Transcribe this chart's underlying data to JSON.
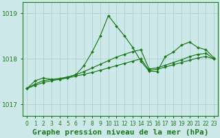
{
  "title": "Graphe pression niveau de la mer (hPa)",
  "background_color": "#cce8e8",
  "grid_color": "#aacccc",
  "line_color": "#1a7a1a",
  "x_values": [
    0,
    1,
    2,
    3,
    4,
    5,
    6,
    7,
    8,
    9,
    10,
    11,
    12,
    13,
    14,
    15,
    16,
    17,
    18,
    19,
    20,
    21,
    22,
    23
  ],
  "line_volatile": [
    1017.35,
    1017.52,
    1017.58,
    1017.55,
    1017.55,
    1017.6,
    1017.65,
    1017.85,
    1018.15,
    1018.5,
    1018.95,
    1018.72,
    1018.5,
    1018.25,
    1017.95,
    1017.73,
    1017.72,
    1018.05,
    1018.15,
    1018.3,
    1018.37,
    1018.25,
    1018.2,
    1018.02
  ],
  "line_trend1": [
    1017.35,
    1017.42,
    1017.48,
    1017.52,
    1017.55,
    1017.58,
    1017.62,
    1017.66,
    1017.7,
    1017.75,
    1017.8,
    1017.85,
    1017.9,
    1017.95,
    1018.0,
    1017.75,
    1017.77,
    1017.82,
    1017.87,
    1017.92,
    1017.97,
    1018.02,
    1018.05,
    1018.0
  ],
  "line_trend2": [
    1017.35,
    1017.45,
    1017.52,
    1017.55,
    1017.57,
    1017.6,
    1017.65,
    1017.72,
    1017.8,
    1017.88,
    1017.96,
    1018.04,
    1018.1,
    1018.16,
    1018.2,
    1017.78,
    1017.8,
    1017.86,
    1017.92,
    1017.98,
    1018.05,
    1018.1,
    1018.12,
    1018.0
  ],
  "ylim_min": 1016.75,
  "ylim_max": 1019.25,
  "yticks": [
    1017,
    1018,
    1019
  ],
  "title_fontsize": 8,
  "tick_fontsize": 6.5
}
